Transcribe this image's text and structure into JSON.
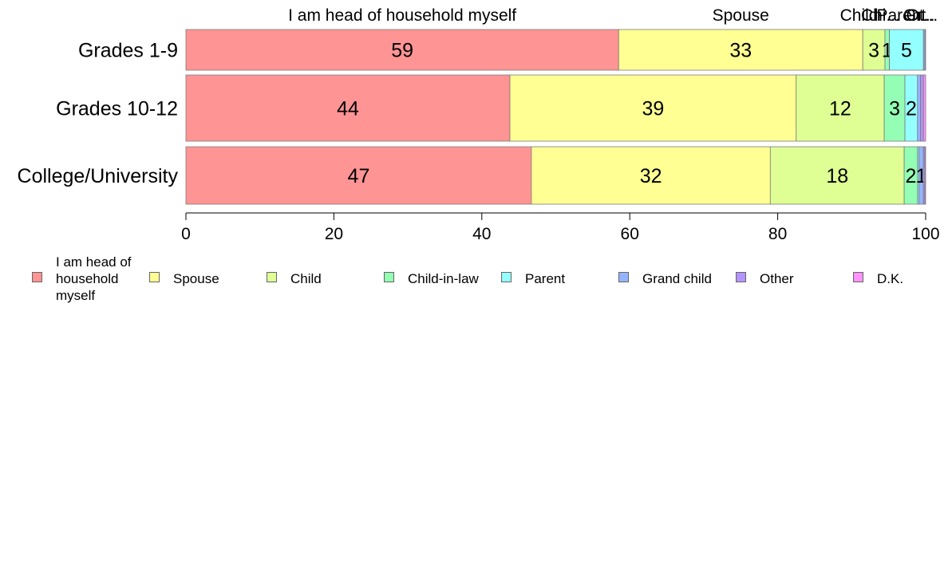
{
  "chart_data": {
    "type": "bar",
    "orientation": "horizontal",
    "stacked": true,
    "categories": [
      "Grades 1-9",
      "Grades 10-12",
      "College/University"
    ],
    "series": [
      {
        "name": "I am head of household myself",
        "color": "#ff9494",
        "values": [
          58.5,
          43.8,
          46.7
        ],
        "labels": [
          "59",
          "44",
          "47"
        ]
      },
      {
        "name": "Spouse",
        "color": "#ffff94",
        "values": [
          33.0,
          38.7,
          32.3
        ],
        "labels": [
          "33",
          "39",
          "32"
        ]
      },
      {
        "name": "Child",
        "color": "#dfff94",
        "values": [
          3.0,
          11.9,
          18.1
        ],
        "labels": [
          "3",
          "12",
          "18"
        ]
      },
      {
        "name": "Child-in-law",
        "color": "#94ffb4",
        "values": [
          0.6,
          2.8,
          1.8
        ],
        "labels": [
          "1",
          "3",
          "2"
        ]
      },
      {
        "name": "Parent",
        "color": "#94ffff",
        "values": [
          4.6,
          1.7,
          0.2
        ],
        "labels": [
          "5",
          "2",
          ""
        ]
      },
      {
        "name": "Grand child",
        "color": "#94b4ff",
        "values": [
          0.2,
          0.4,
          0.6
        ],
        "labels": [
          "",
          "",
          "1"
        ]
      },
      {
        "name": "Other",
        "color": "#b494ff",
        "values": [
          0.1,
          0.4,
          0.2
        ],
        "labels": [
          "",
          "",
          ""
        ]
      },
      {
        "name": "D.K.",
        "color": "#ff94ff",
        "values": [
          0.0,
          0.3,
          0.1
        ],
        "labels": [
          "",
          "",
          ""
        ]
      }
    ],
    "top_labels": [
      {
        "text": "I am head of household myself",
        "at": 29.25
      },
      {
        "text": "Spouse",
        "at": 75.0
      },
      {
        "text": "Child",
        "at": 91.0
      },
      {
        "text": "Chi...",
        "at": 93.9
      },
      {
        "text": "Parent",
        "at": 96.7
      },
      {
        "text": "Gr...",
        "at": 99.1
      },
      {
        "text": "Ot...",
        "at": 99.5
      }
    ],
    "xlim": [
      0,
      100
    ],
    "xticks": [
      0,
      20,
      40,
      60,
      80,
      100
    ],
    "legend_position": "bottom"
  },
  "legend": {
    "items": [
      {
        "label": "I am head of household myself",
        "color": "#ff9494"
      },
      {
        "label": "Spouse",
        "color": "#ffff94"
      },
      {
        "label": "Child",
        "color": "#dfff94"
      },
      {
        "label": "Child-in-law",
        "color": "#94ffb4"
      },
      {
        "label": "Parent",
        "color": "#94ffff"
      },
      {
        "label": "Grand child",
        "color": "#94b4ff"
      },
      {
        "label": "Other",
        "color": "#b494ff"
      },
      {
        "label": "D.K.",
        "color": "#ff94ff"
      }
    ]
  }
}
